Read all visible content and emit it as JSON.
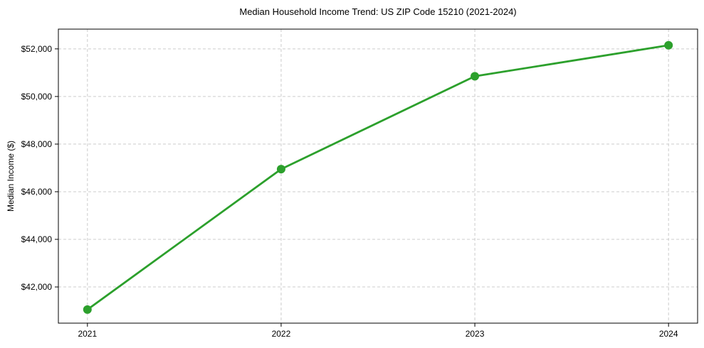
{
  "chart_data": {
    "type": "line",
    "title": "Median Household Income Trend: US ZIP Code 15210 (2021-2024)",
    "xlabel": "",
    "ylabel": "Median Income ($)",
    "x": [
      2021,
      2022,
      2023,
      2024
    ],
    "x_tick_labels": [
      "2021",
      "2022",
      "2023",
      "2024"
    ],
    "values": [
      41050,
      46950,
      50850,
      52150
    ],
    "y_ticks": [
      42000,
      44000,
      46000,
      48000,
      50000,
      52000
    ],
    "y_tick_labels": [
      "$42,000",
      "$44,000",
      "$46,000",
      "$48,000",
      "$50,000",
      "$52,000"
    ],
    "xlim": [
      2020.85,
      2024.15
    ],
    "ylim": [
      40480,
      52830
    ],
    "line_color": "#2ca02c",
    "marker": "circle",
    "marker_radius": 6,
    "grid": {
      "show": true,
      "style": "dashed",
      "color": "#cccccc"
    },
    "legend_position": "none",
    "background_color": "#ffffff",
    "frame_color": "#000000"
  }
}
